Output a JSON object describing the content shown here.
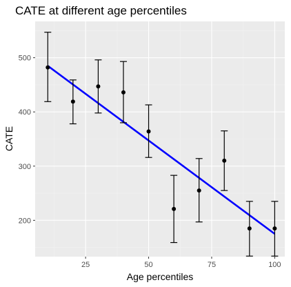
{
  "chart_data": {
    "type": "scatter",
    "title": "CATE at different age percentiles",
    "xlabel": "Age percentiles",
    "ylabel": "CATE",
    "xlim": [
      5,
      104
    ],
    "ylim": [
      133,
      567
    ],
    "grid": true,
    "x_ticks": [
      25,
      50,
      75,
      100
    ],
    "y_ticks": [
      200,
      300,
      400,
      500
    ],
    "x_tick_labels": [
      "25",
      "50",
      "75",
      "100"
    ],
    "y_tick_labels": [
      "200",
      "300",
      "400",
      "500"
    ],
    "points": [
      {
        "x": 10,
        "y": 482,
        "lower": 419,
        "upper": 547
      },
      {
        "x": 20,
        "y": 419,
        "lower": 378,
        "upper": 459
      },
      {
        "x": 30,
        "y": 447,
        "lower": 398,
        "upper": 496
      },
      {
        "x": 40,
        "y": 436,
        "lower": 380,
        "upper": 493
      },
      {
        "x": 50,
        "y": 364,
        "lower": 316,
        "upper": 413
      },
      {
        "x": 60,
        "y": 221,
        "lower": 159,
        "upper": 283
      },
      {
        "x": 70,
        "y": 255,
        "lower": 197,
        "upper": 314
      },
      {
        "x": 80,
        "y": 310,
        "lower": 255,
        "upper": 365
      },
      {
        "x": 90,
        "y": 185,
        "lower": 134,
        "upper": 235
      },
      {
        "x": 100,
        "y": 185,
        "lower": 134,
        "upper": 235
      }
    ],
    "fit_line": {
      "x": [
        10,
        100
      ],
      "y": [
        485,
        175
      ]
    },
    "colors": {
      "panel": "#ebebeb",
      "fit": "#0000ff",
      "points": "#000000"
    }
  }
}
